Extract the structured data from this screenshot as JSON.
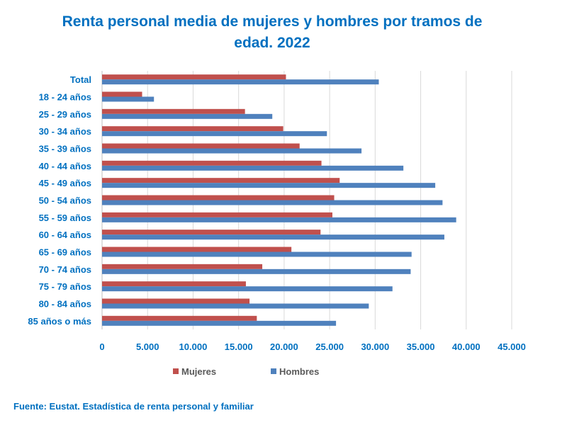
{
  "chart_data": {
    "type": "bar",
    "orientation": "horizontal",
    "title_lines": [
      "Renta personal media de mujeres y hombres por tramos de",
      "edad. 2022"
    ],
    "categories": [
      "Total",
      "18 - 24 años",
      "25 - 29 años",
      "30 - 34 años",
      "35 - 39 años",
      "40 - 44 años",
      "45 - 49 años",
      "50 - 54 años",
      "55 - 59 años",
      "60 - 64 años",
      "65 - 69 años",
      "70 - 74 años",
      "75 - 79 años",
      "80 - 84 años",
      "85 años o más"
    ],
    "series": [
      {
        "name": "Mujeres",
        "color": "#C0504D",
        "values": [
          20200,
          4400,
          15700,
          19900,
          21700,
          24100,
          26100,
          25500,
          25300,
          24000,
          20800,
          17600,
          15800,
          16200,
          17000
        ]
      },
      {
        "name": "Hombres",
        "color": "#4F81BD",
        "values": [
          30400,
          5700,
          18700,
          24700,
          28500,
          33100,
          36600,
          37400,
          38900,
          37600,
          34000,
          33900,
          31900,
          29300,
          25700
        ]
      }
    ],
    "xlim": [
      0,
      45000
    ],
    "xticks": [
      0,
      5000,
      10000,
      15000,
      20000,
      25000,
      30000,
      35000,
      40000,
      45000
    ],
    "xtick_labels": [
      "0",
      "5.000",
      "10.000",
      "15.000",
      "20.000",
      "25.000",
      "30.000",
      "35.000",
      "40.000",
      "45.000"
    ],
    "grid": "vertical",
    "legend_position": "bottom"
  },
  "source": "Fuente: Eustat. Estadística de renta personal y familiar"
}
